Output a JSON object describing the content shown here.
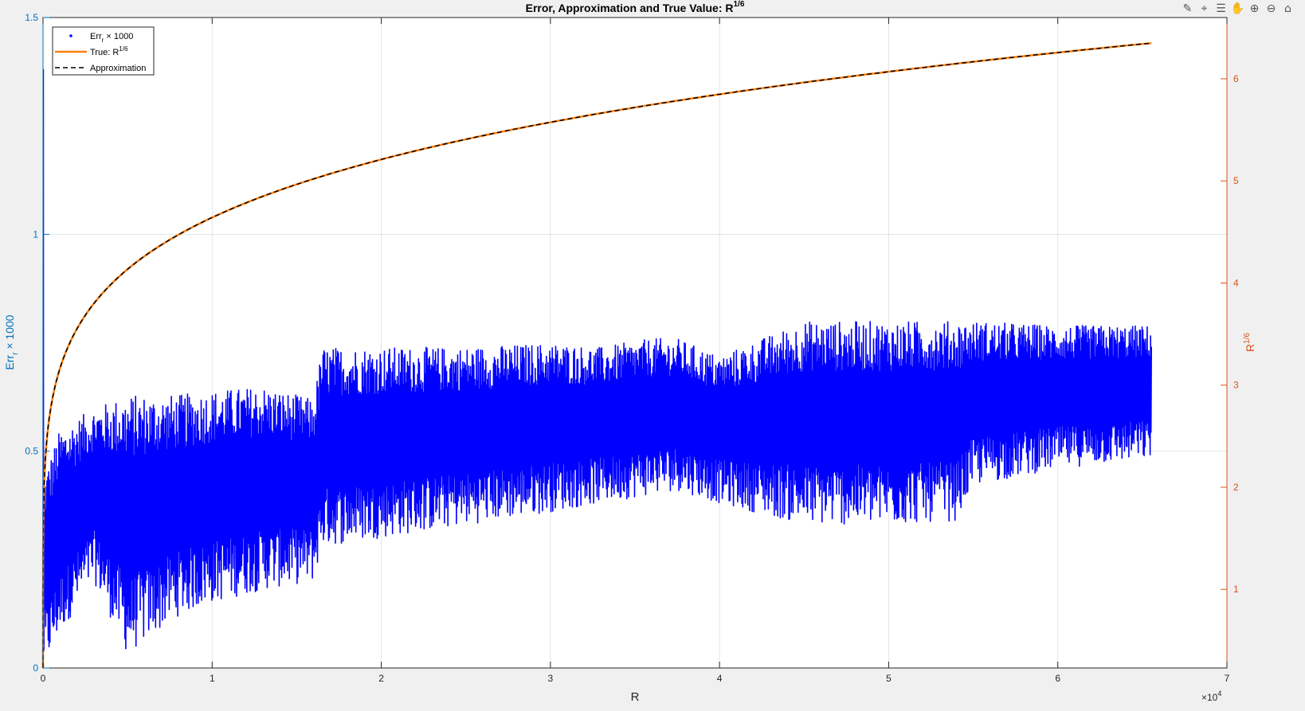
{
  "toolbar": {
    "icons": [
      "brush-icon",
      "data-tips-icon",
      "legend-icon",
      "pan-icon",
      "zoom-in-icon",
      "zoom-out-icon",
      "home-icon"
    ],
    "glyphs": [
      "✎",
      "⌖",
      "☰",
      "✋",
      "⊕",
      "⊖",
      "⌂"
    ]
  },
  "chart_data": {
    "type": "line",
    "title": "Error, Approximation and True Value: R",
    "title_sup": "1/6",
    "xlabel": "R",
    "x_exponent": "×10",
    "x_exponent_sup": "4",
    "xlim": [
      0,
      7
    ],
    "xticks": [
      0,
      1,
      2,
      3,
      4,
      5,
      6,
      7
    ],
    "left_axis": {
      "label": "Err",
      "label_sub": "r",
      "label_tail": " × 1000",
      "ylim": [
        0,
        1.5
      ],
      "ticks": [
        0,
        0.5,
        1,
        1.5
      ],
      "tick_labels": [
        "0",
        "0.5",
        "1",
        "1.5"
      ],
      "color": "#0072bd"
    },
    "right_axis": {
      "label": "R",
      "label_sup": "1/6",
      "ylim": [
        0.23,
        6.6
      ],
      "ticks": [
        1,
        2,
        3,
        4,
        5,
        6
      ],
      "tick_labels": [
        "1",
        "2",
        "3",
        "4",
        "5",
        "6"
      ],
      "color": "#d95319"
    },
    "grid": true,
    "legend": {
      "location": "top-left",
      "entries": [
        {
          "label": "Err",
          "sub": "r",
          "tail": " × 1000",
          "sup": "",
          "style": "dots",
          "color": "#0000ff"
        },
        {
          "label": "True: R",
          "sub": "",
          "tail": "",
          "sup": "1/6",
          "style": "solid",
          "color": "#ff7f0e"
        },
        {
          "label": "Approximation",
          "sub": "",
          "tail": "",
          "sup": "",
          "style": "dashed",
          "color": "#000000"
        }
      ]
    },
    "series": [
      {
        "name": "True: R^(1/6)",
        "axis": "right",
        "color": "#ff7f0e",
        "x_max": 6.5536,
        "formula": "R^(1/6)"
      },
      {
        "name": "Approximation",
        "axis": "right",
        "color": "#000000",
        "x_max": 6.5536,
        "formula": "R^(1/6)"
      },
      {
        "name": "Err_r x 1000",
        "axis": "left",
        "color": "#0000ff",
        "x_max": 6.5536,
        "envelope_x": [
          0.01,
          0.1,
          0.3,
          0.5,
          0.8,
          1.0,
          1.3,
          1.6,
          1.65,
          2.0,
          2.5,
          3.0,
          3.3,
          3.6,
          3.75,
          4.0,
          4.5,
          5.0,
          5.4,
          5.5,
          6.0,
          6.5
        ],
        "envelope_lo": [
          0.0,
          0.08,
          0.2,
          0.03,
          0.12,
          0.15,
          0.18,
          0.2,
          0.28,
          0.3,
          0.33,
          0.36,
          0.38,
          0.4,
          0.41,
          0.38,
          0.33,
          0.33,
          0.34,
          0.42,
          0.46,
          0.48
        ],
        "envelope_hi": [
          0.45,
          0.55,
          0.6,
          0.63,
          0.63,
          0.64,
          0.65,
          0.62,
          0.74,
          0.74,
          0.74,
          0.75,
          0.74,
          0.76,
          0.76,
          0.72,
          0.8,
          0.8,
          0.8,
          0.8,
          0.79,
          0.79
        ],
        "spike_start": 0.0,
        "spike_peak": 1.38
      }
    ]
  }
}
